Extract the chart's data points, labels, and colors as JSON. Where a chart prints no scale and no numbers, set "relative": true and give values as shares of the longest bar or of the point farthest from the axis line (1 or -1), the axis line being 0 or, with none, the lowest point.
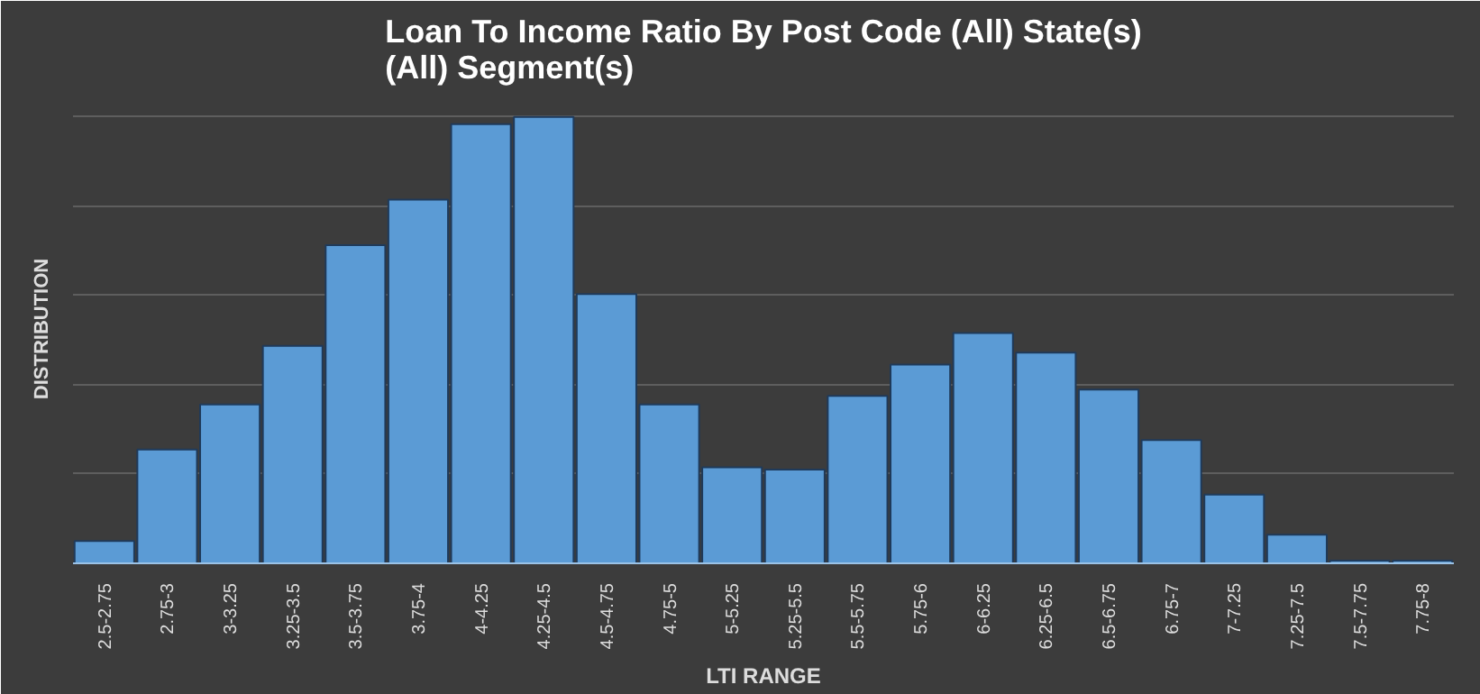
{
  "chart_data": {
    "type": "bar",
    "title": "Loan To Income Ratio By Post Code (All) State(s) (All) Segment(s)",
    "xlabel": "LTI RANGE",
    "ylabel": "DISTRIBUTION",
    "relative": true,
    "grid": "y",
    "color": "#5b9bd5",
    "categories": [
      "2.5-2.75",
      "2.75-3",
      "3-3.25",
      "3.25-3.5",
      "3.5-3.75",
      "3.75-4",
      "4-4.25",
      "4.25-4.5",
      "4.5-4.75",
      "4.75-5",
      "5-5.25",
      "5.25-5.5",
      "5.5-5.75",
      "5.75-6",
      "6-6.25",
      "6.25-6.5",
      "6.5-6.75",
      "6.75-7",
      "7-7.25",
      "7.25-7.5",
      "7.5-7.75",
      "7.75-8"
    ],
    "values": [
      0.05,
      0.255,
      0.356,
      0.487,
      0.713,
      0.815,
      0.984,
      1,
      0.603,
      0.356,
      0.215,
      0.21,
      0.375,
      0.445,
      0.516,
      0.472,
      0.389,
      0.276,
      0.154,
      0.064,
      0.006,
      0.006
    ]
  }
}
